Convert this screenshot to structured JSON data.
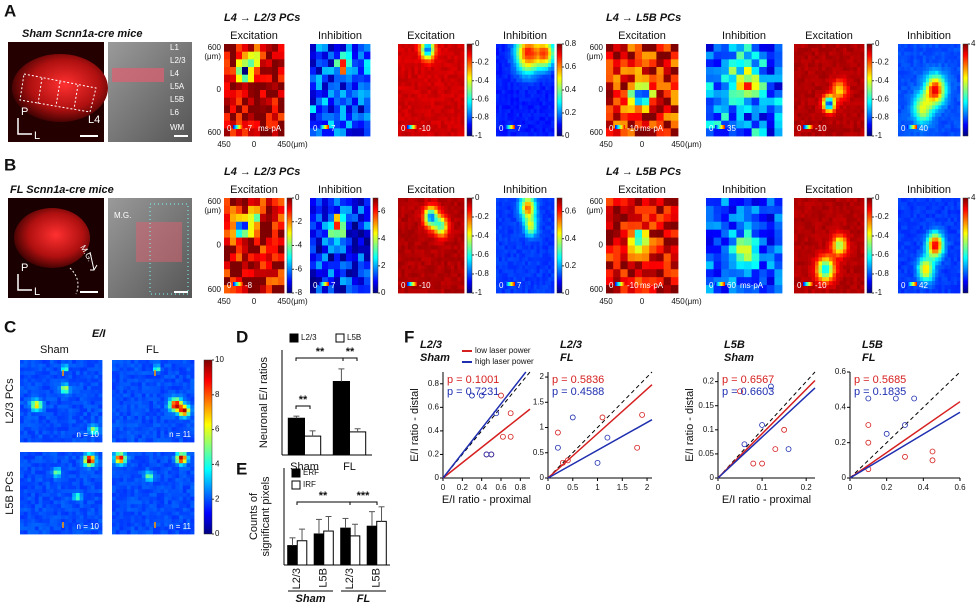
{
  "labels": [
    "A",
    "B",
    "C",
    "D",
    "E",
    "F"
  ],
  "row_a": {
    "title": "Sham Scnn1a-cre mice",
    "layers": [
      "L1",
      "L2/3",
      "L4",
      "L5A",
      "L5B",
      "L6",
      "WM"
    ],
    "orientation": [
      "P",
      "L"
    ],
    "region": "L4",
    "groups": [
      "L4 → L2/3 PCs",
      "L4 → L5B PCs"
    ],
    "y_axis": [
      "600",
      "0",
      "600"
    ],
    "y_unit": "(μm)",
    "x_axis": [
      "450",
      "0",
      "450"
    ],
    "x_unit": "(μm)",
    "maps": [
      {
        "title": "Excitation",
        "scale": [
          "0",
          "-7"
        ],
        "unit": "ms·pA"
      },
      {
        "title": "Inhibition",
        "scale": [
          "0",
          "7"
        ]
      },
      {
        "title": "Excitation",
        "scale": [
          "0",
          "-10"
        ],
        "colorbar": {
          "lim": [
            -1,
            0
          ],
          "ticks": [
            0,
            -0.2,
            -0.4,
            -0.6,
            -0.8,
            -1
          ]
        }
      },
      {
        "title": "Inhibition",
        "scale": [
          "0",
          "7"
        ],
        "colorbar": {
          "lim": [
            0,
            0.8
          ],
          "ticks": [
            0.8,
            0.6,
            0.4,
            0.2,
            0
          ]
        }
      },
      {
        "title": "Excitation",
        "scale": [
          "0",
          "-10"
        ],
        "unit": "ms·pA"
      },
      {
        "title": "Inhibition",
        "scale": [
          "0",
          "35"
        ]
      },
      {
        "title": "Excitation",
        "scale": [
          "0",
          "-10"
        ],
        "colorbar": {
          "lim": [
            -1,
            0
          ],
          "ticks": [
            0,
            -0.2,
            -0.4,
            -0.6,
            -0.8,
            -1
          ]
        }
      },
      {
        "title": "Inhibition",
        "scale": [
          "0",
          "40"
        ],
        "colorbar": {
          "lim": [
            0,
            4
          ],
          "ticks": [
            4
          ]
        }
      }
    ]
  },
  "row_b": {
    "title": "FL Scnn1a-cre mice",
    "mg": [
      "M.G.",
      "M.G."
    ],
    "orientation": [
      "P",
      "L"
    ],
    "groups": [
      "L4 → L2/3 PCs",
      "L4 → L5B PCs"
    ],
    "y_axis": [
      "600",
      "0",
      "600"
    ],
    "y_unit": "(μm)",
    "x_axis": [
      "450",
      "0",
      "450"
    ],
    "x_unit": "(μm)",
    "maps": [
      {
        "title": "Excitation",
        "scale": [
          "0",
          "-8"
        ],
        "colorbar": {
          "lim": [
            -8,
            0
          ],
          "ticks": [
            0,
            -2,
            -4,
            -6,
            -8
          ]
        }
      },
      {
        "title": "Inhibition",
        "scale": [
          "0",
          "7"
        ],
        "colorbar": {
          "lim": [
            0,
            7
          ],
          "ticks": [
            6,
            4,
            2,
            0
          ]
        }
      },
      {
        "title": "Excitation",
        "scale": [
          "0",
          "-10"
        ],
        "colorbar": {
          "lim": [
            -1,
            0
          ],
          "ticks": [
            0,
            -0.2,
            -0.4,
            -0.6,
            -0.8,
            -1
          ]
        }
      },
      {
        "title": "Inhibition",
        "scale": [
          "0",
          "7"
        ],
        "colorbar": {
          "lim": [
            0,
            0.7
          ],
          "ticks": [
            0.6,
            0.4,
            0.2,
            0
          ]
        }
      },
      {
        "title": "Excitation",
        "scale": [
          "0",
          "-10"
        ],
        "unit": "ms·pA"
      },
      {
        "title": "Inhibition",
        "scale": [
          "0",
          "60"
        ],
        "unit": "ms·pA"
      },
      {
        "title": "Excitation",
        "scale": [
          "0",
          "-10"
        ],
        "colorbar": {
          "lim": [
            -1,
            0
          ],
          "ticks": [
            0,
            -0.2,
            -0.4,
            -0.6,
            -0.8,
            -1
          ]
        }
      },
      {
        "title": "Inhibition",
        "scale": [
          "0",
          "42"
        ],
        "colorbar": {
          "lim": [
            0,
            4
          ],
          "ticks": [
            4
          ]
        }
      }
    ]
  },
  "panel_c": {
    "title": "E/I",
    "columns": [
      "Sham",
      "FL"
    ],
    "rows": [
      "L2/3 PCs",
      "L5B PCs"
    ],
    "n": [
      "n = 10",
      "n = 11",
      "n = 10",
      "n = 11"
    ],
    "colorbar": {
      "lim": [
        0,
        10
      ],
      "ticks": [
        10,
        8,
        6,
        4,
        2,
        0
      ]
    }
  },
  "chart_data": [
    {
      "type": "bar",
      "ylabel": [
        "Neuronal  E/I ratios"
      ],
      "categories": [
        "Sham",
        "FL"
      ],
      "series": [
        {
          "name": "L2/3",
          "color": "#000000",
          "values": [
            0.35,
            0.7
          ],
          "errors": [
            0.02,
            0.12
          ]
        },
        {
          "name": "L5B",
          "color": "#ffffff",
          "values": [
            0.18,
            0.22
          ],
          "errors": [
            0.05,
            0.03
          ]
        }
      ],
      "ylim": [
        0,
        1
      ],
      "annotations": [
        "**",
        "**",
        "**"
      ]
    },
    {
      "type": "bar",
      "ylabel": [
        "Counts of",
        "significant pixels"
      ],
      "categories": [
        "L2/3",
        "L5B",
        "L2/3",
        "L5B"
      ],
      "groups": [
        "Sham",
        "FL"
      ],
      "series": [
        {
          "name": "ERF",
          "color": "#000000",
          "values": [
            20,
            32,
            38,
            40
          ],
          "errors": [
            8,
            15,
            10,
            15
          ]
        },
        {
          "name": "IRF",
          "color": "#ffffff",
          "values": [
            25,
            35,
            30,
            45
          ],
          "errors": [
            12,
            15,
            12,
            15
          ]
        }
      ],
      "ylim": [
        0,
        100
      ],
      "annotations": [
        "**",
        "***"
      ]
    },
    {
      "type": "scatter",
      "title": "L2/3",
      "subtitle": "Sham",
      "xlabel": "E/I ratio - proximal",
      "ylabel": "E/I ratio - distal",
      "xlim": [
        0,
        0.9
      ],
      "ylim": [
        0,
        0.9
      ],
      "xticks": [
        0,
        0.2,
        0.4,
        0.6,
        0.8
      ],
      "yticks": [
        0,
        0.2,
        0.4,
        0.6,
        0.8
      ],
      "series": [
        {
          "name": "low laser power",
          "color": "#d62020",
          "label": "p = 0.1001",
          "x": [
            0.45,
            0.5,
            0.62,
            0.7,
            0.7,
            0.6
          ],
          "values": [
            0.2,
            0.2,
            0.35,
            0.35,
            0.55,
            0.7
          ],
          "fit_slope": 0.65
        },
        {
          "name": "high laser power",
          "color": "#1f2fb0",
          "label": "p = 0.7231",
          "x": [
            0.3,
            0.4,
            0.45,
            0.5,
            0.55
          ],
          "values": [
            0.7,
            0.7,
            0.2,
            0.2,
            0.55
          ],
          "fit_slope": 1.05
        }
      ]
    },
    {
      "type": "scatter",
      "title": "L2/3",
      "subtitle": "FL",
      "xlim": [
        0,
        2.1
      ],
      "ylim": [
        0,
        2.1
      ],
      "xticks": [
        0,
        0.5,
        1,
        1.5,
        2
      ],
      "yticks": [
        0,
        0.5,
        1,
        1.5,
        2
      ],
      "series": [
        {
          "color": "#d62020",
          "label": "p = 0.5836",
          "x": [
            0.2,
            0.3,
            0.4,
            1.1,
            1.8,
            1.9
          ],
          "values": [
            0.9,
            0.3,
            0.35,
            1.2,
            0.6,
            1.25
          ],
          "fit_slope": 0.88
        },
        {
          "color": "#1f2fb0",
          "label": "p = 0.4588",
          "x": [
            0.2,
            0.5,
            1,
            1.2
          ],
          "values": [
            0.6,
            1.2,
            0.3,
            0.8
          ],
          "fit_slope": 0.55
        }
      ]
    },
    {
      "type": "scatter",
      "title": "L5B",
      "subtitle": "Sham",
      "xlabel": "E/I ratio - proximal",
      "ylabel": "E/I ratio - distal",
      "xlim": [
        0,
        0.22
      ],
      "ylim": [
        0,
        0.22
      ],
      "xticks": [
        0,
        0.1,
        0.2
      ],
      "yticks": [
        0,
        0.05,
        0.1,
        0.15,
        0.2
      ],
      "series": [
        {
          "color": "#d62020",
          "label": "p = 0.6567",
          "x": [
            0.05,
            0.08,
            0.1,
            0.13,
            0.15
          ],
          "values": [
            0.18,
            0.03,
            0.03,
            0.06,
            0.1
          ],
          "fit_slope": 0.92
        },
        {
          "color": "#1f2fb0",
          "label": "p = 0.6603",
          "x": [
            0.06,
            0.1,
            0.12,
            0.16
          ],
          "values": [
            0.07,
            0.11,
            0.19,
            0.06
          ],
          "fit_slope": 0.85
        }
      ]
    },
    {
      "type": "scatter",
      "title": "L5B",
      "subtitle": "FL",
      "xlim": [
        0,
        0.6
      ],
      "ylim": [
        0,
        0.6
      ],
      "xticks": [
        0,
        0.2,
        0.4,
        0.6
      ],
      "yticks": [
        0,
        0.2,
        0.4,
        0.6
      ],
      "series": [
        {
          "color": "#d62020",
          "label": "p = 0.5685",
          "x": [
            0.1,
            0.1,
            0.1,
            0.3,
            0.45,
            0.45
          ],
          "values": [
            0.05,
            0.2,
            0.3,
            0.12,
            0.1,
            0.15
          ],
          "fit_slope": 0.72
        },
        {
          "color": "#1f2fb0",
          "label": "p = 0.1835",
          "x": [
            0.1,
            0.2,
            0.25,
            0.3,
            0.35
          ],
          "values": [
            0.45,
            0.25,
            0.45,
            0.3,
            0.45
          ],
          "fit_slope": 0.62
        }
      ]
    }
  ]
}
